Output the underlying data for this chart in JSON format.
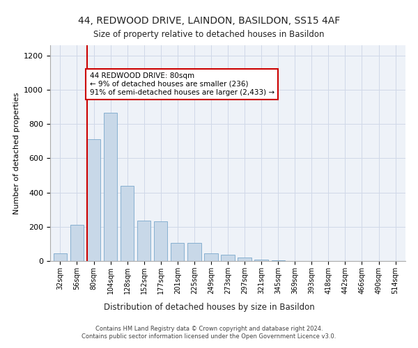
{
  "title1": "44, REDWOOD DRIVE, LAINDON, BASILDON, SS15 4AF",
  "title2": "Size of property relative to detached houses in Basildon",
  "xlabel": "Distribution of detached houses by size in Basildon",
  "ylabel": "Number of detached properties",
  "categories": [
    "32sqm",
    "56sqm",
    "80sqm",
    "104sqm",
    "128sqm",
    "152sqm",
    "177sqm",
    "201sqm",
    "225sqm",
    "249sqm",
    "273sqm",
    "297sqm",
    "321sqm",
    "345sqm",
    "369sqm",
    "393sqm",
    "418sqm",
    "442sqm",
    "466sqm",
    "490sqm",
    "514sqm"
  ],
  "values": [
    45,
    210,
    710,
    865,
    440,
    235,
    230,
    105,
    105,
    45,
    35,
    20,
    10,
    3,
    2,
    1,
    1,
    1,
    0,
    0,
    0
  ],
  "bar_color": "#c8d8e8",
  "bar_edge_color": "#7aa8cc",
  "redline_index": 2,
  "annotation_text": "44 REDWOOD DRIVE: 80sqm\n← 9% of detached houses are smaller (236)\n91% of semi-detached houses are larger (2,433) →",
  "annotation_box_color": "#ffffff",
  "annotation_box_edge": "#cc0000",
  "redline_color": "#cc0000",
  "grid_color": "#d0d8e8",
  "background_color": "#eef2f8",
  "footer1": "Contains HM Land Registry data © Crown copyright and database right 2024.",
  "footer2": "Contains public sector information licensed under the Open Government Licence v3.0.",
  "ylim": [
    0,
    1260
  ],
  "yticks": [
    0,
    200,
    400,
    600,
    800,
    1000,
    1200
  ]
}
